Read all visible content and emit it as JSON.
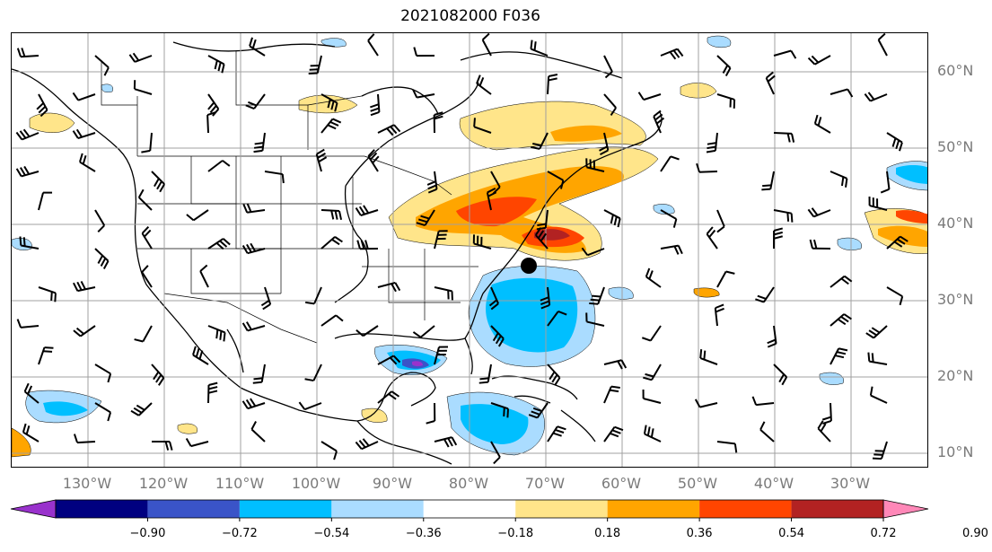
{
  "title": "2021082000 F036",
  "lat_labels": [
    "60°N",
    "50°N",
    "40°N",
    "30°N",
    "20°N",
    "10°N"
  ],
  "lon_labels": [
    "130°W",
    "120°W",
    "110°W",
    "100°W",
    "90°W",
    "80°W",
    "70°W",
    "60°W",
    "50°W",
    "40°W",
    "30°W"
  ],
  "colorbar": {
    "ticks": [
      "−0.90",
      "−0.72",
      "−0.54",
      "−0.36",
      "−0.18",
      "0.18",
      "0.36",
      "0.54",
      "0.72",
      "0.90"
    ],
    "colors": [
      "#9932cc",
      "#000080",
      "#3a54c8",
      "#00bfff",
      "#aadcff",
      "#ffffff",
      "#ffe58a",
      "#ffa500",
      "#ff4500",
      "#b22222",
      "#ff88b8"
    ]
  },
  "map": {
    "grid_color": "#a0a0a0",
    "storm_marker": "black-dot"
  }
}
